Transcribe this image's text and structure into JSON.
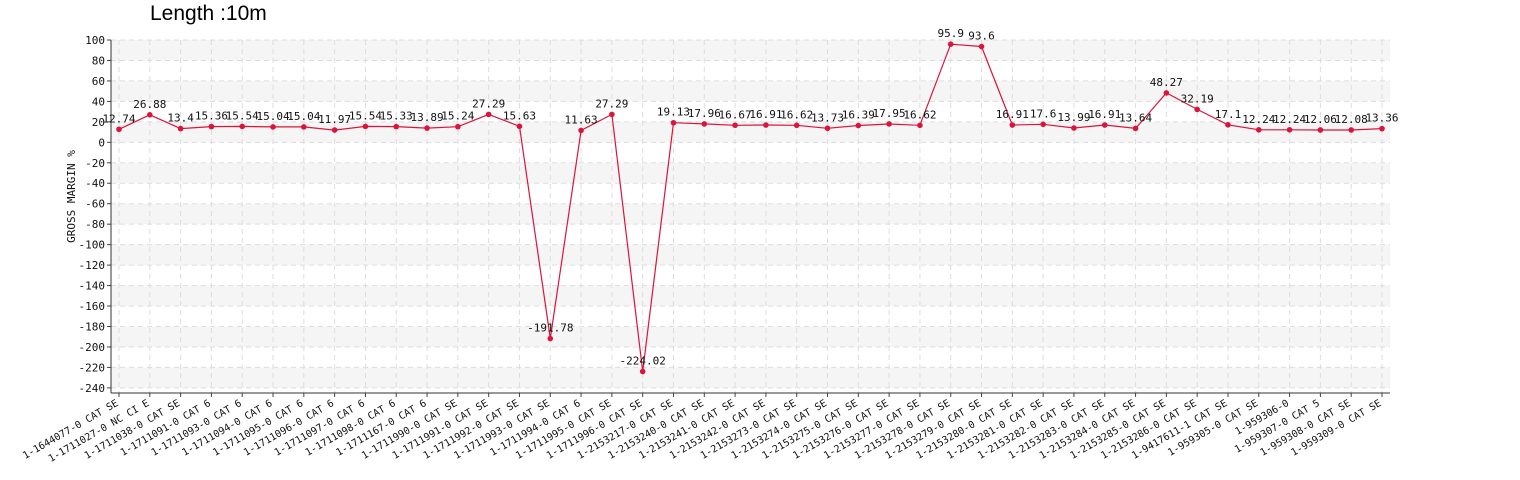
{
  "chart_data": {
    "type": "line",
    "title": "Length :10m",
    "ylabel": "GROSS MARGIN %",
    "xlabel": "",
    "ylim": [
      -245,
      100
    ],
    "yticks": [
      100,
      80,
      60,
      40,
      20,
      0,
      -20,
      -40,
      -60,
      -80,
      -100,
      -120,
      -140,
      -160,
      -180,
      -200,
      -220,
      -240
    ],
    "grid": true,
    "line_color": "#dc143c",
    "categories": [
      "1-1644077-0 CAT SE",
      "1-1711027-0 NC CI E",
      "1-1711038-0 CAT SE",
      "1-1711091-0 CAT 6",
      "1-1711093-0 CAT 6",
      "1-1711094-0 CAT 6",
      "1-1711095-0 CAT 6",
      "1-1711096-0 CAT 6",
      "1-1711097-0 CAT 6",
      "1-1711098-0 CAT 6",
      "1-1711167-0 CAT 6",
      "1-1711990-0 CAT SE",
      "1-1711991-0 CAT SE",
      "1-1711992-0 CAT SE",
      "1-1711993-0 CAT SE",
      "1-1711994-0 CAT 6",
      "1-1711995-0 CAT SE",
      "1-1711996-0 CAT SE",
      "1-2153217-0 CAT SE",
      "1-2153240-0 CAT SE",
      "1-2153241-0 CAT SE",
      "1-2153242-0 CAT SE",
      "1-2153273-0 CAT SE",
      "1-2153274-0 CAT SE",
      "1-2153275-0 CAT SE",
      "1-2153276-0 CAT SE",
      "1-2153277-0 CAT SE",
      "1-2153278-0 CAT SE",
      "1-2153279-0 CAT SE",
      "1-2153280-0 CAT SE",
      "1-2153281-0 CAT SE",
      "1-2153282-0 CAT SE",
      "1-2153283-0 CAT SE",
      "1-2153284-0 CAT SE",
      "1-2153285-0 CAT SE",
      "1-2153286-0 CAT SE",
      "1-9417611-1 CAT SE",
      "1-959305-0 CAT SE",
      "1-959306-0",
      "1-959307-0 CAT 5",
      "1-959308-0 CAT SE",
      "1-959309-0 CAT SE"
    ],
    "values": [
      12.74,
      26.88,
      13.4,
      15.36,
      15.54,
      15.04,
      15.04,
      11.97,
      15.54,
      15.33,
      13.89,
      15.24,
      27.29,
      15.63,
      -191.78,
      11.63,
      27.29,
      -224.02,
      19.13,
      17.96,
      16.67,
      16.91,
      16.62,
      13.73,
      16.39,
      17.95,
      16.62,
      95.9,
      93.6,
      16.91,
      17.6,
      13.99,
      16.91,
      13.64,
      48.27,
      32.19,
      17.1,
      12.24,
      12.24,
      12.06,
      12.08,
      13.36
    ],
    "value_labels": [
      "12.74",
      "26.88",
      "13.4",
      "15.36",
      "15.54",
      "15.04",
      "15.04",
      "11.97",
      "15.54",
      "15.33",
      "13.89",
      "15.24",
      "27.29",
      "15.63",
      "-191.78",
      "11.63",
      "27.29",
      "-224.02",
      "19.13",
      "17.96",
      "16.67",
      "16.91",
      "16.62",
      "13.73",
      "16.39",
      "17.95",
      "16.62",
      "95.9",
      "93.6",
      "16.91",
      "17.6",
      "13.99",
      "16.91",
      "13.64",
      "48.27",
      "32.19",
      "17.1",
      "12.24",
      "12.24",
      "12.06",
      "12.08",
      "13.36"
    ]
  }
}
